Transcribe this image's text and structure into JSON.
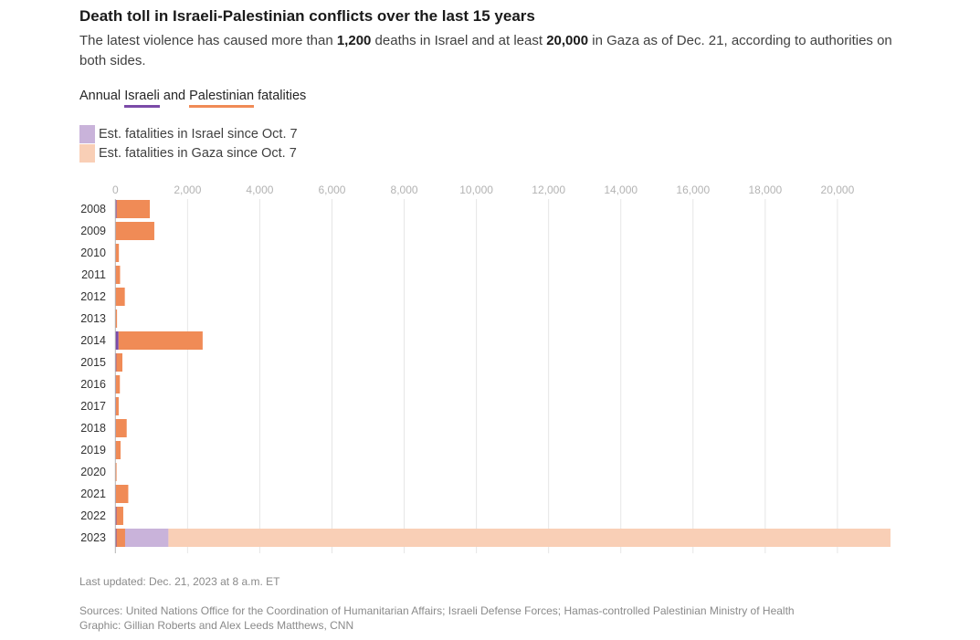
{
  "header": {
    "title": "Death toll in Israeli-Palestinian conflicts over the last 15 years",
    "subtitle_parts": [
      "The latest violence has caused more than ",
      "1,200",
      " deaths in Israel and at least ",
      "20,000",
      " in Gaza as of Dec. 21, according to authorities on both sides."
    ]
  },
  "legend": {
    "annual_prefix": "Annual ",
    "annual_israeli": "Israeli",
    "annual_and": " and ",
    "annual_palestinian": "Palestinian",
    "annual_suffix": " fatalities",
    "israel_since_oct7": "Est. fatalities in Israel since Oct. 7",
    "gaza_since_oct7": "Est. fatalities in Gaza since Oct. 7"
  },
  "colors": {
    "israeli": "#7B4BA8",
    "palestinian": "#F08B56",
    "israel_since_oct7": "#C9B3DA",
    "gaza_since_oct7": "#F9CFB6",
    "grid": "#e6e6e6"
  },
  "chart_data": {
    "type": "bar",
    "orientation": "horizontal",
    "stacked": true,
    "title": "Annual Israeli and Palestinian fatalities",
    "xlabel": "",
    "ylabel": "",
    "xlim": [
      0,
      21500
    ],
    "x_ticks": [
      0,
      2000,
      4000,
      6000,
      8000,
      10000,
      12000,
      14000,
      16000,
      18000,
      20000
    ],
    "x_tick_labels": [
      "0",
      "2,000",
      "4,000",
      "6,000",
      "8,000",
      "10,000",
      "12,000",
      "14,000",
      "16,000",
      "18,000",
      "20,000"
    ],
    "grid": true,
    "legend_position": "top-left",
    "categories": [
      "2008",
      "2009",
      "2010",
      "2011",
      "2012",
      "2013",
      "2014",
      "2015",
      "2016",
      "2017",
      "2018",
      "2019",
      "2020",
      "2021",
      "2022",
      "2023"
    ],
    "series": [
      {
        "name": "Israeli",
        "values": [
          35,
          9,
          8,
          11,
          7,
          6,
          88,
          25,
          15,
          18,
          14,
          10,
          3,
          13,
          29,
          30
        ]
      },
      {
        "name": "Palestinian",
        "values": [
          920,
          1070,
          90,
          120,
          255,
          40,
          2330,
          170,
          110,
          75,
          300,
          135,
          30,
          345,
          190,
          240
        ]
      },
      {
        "name": "Est. fatalities in Israel since Oct. 7",
        "values": [
          0,
          0,
          0,
          0,
          0,
          0,
          0,
          0,
          0,
          0,
          0,
          0,
          0,
          0,
          0,
          1200
        ]
      },
      {
        "name": "Est. fatalities in Gaza since Oct. 7",
        "values": [
          0,
          0,
          0,
          0,
          0,
          0,
          0,
          0,
          0,
          0,
          0,
          0,
          0,
          0,
          0,
          20000
        ]
      }
    ]
  },
  "footer": {
    "last_updated": "Last updated: Dec. 21, 2023 at 8 a.m. ET",
    "sources": "Sources: United Nations Office for the Coordination of Humanitarian Affairs; Israeli Defense Forces; Hamas-controlled Palestinian Ministry of Health",
    "credit": "Graphic: Gillian Roberts and Alex Leeds Matthews, CNN"
  }
}
